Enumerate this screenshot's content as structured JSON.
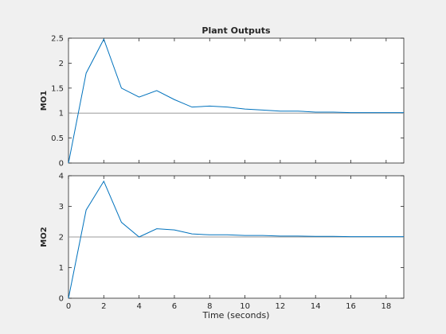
{
  "colors": {
    "figure_bg": "#f0f0f0",
    "axes_bg": "#ffffff",
    "axis": "#262626",
    "series": "#0072bd",
    "reference": "#9b9b9b"
  },
  "chart_data": [
    {
      "type": "line",
      "title": "Plant Outputs",
      "xlabel": "",
      "ylabel": "MO1",
      "xlim": [
        0,
        19
      ],
      "ylim": [
        0,
        2.5
      ],
      "xticks": [
        0,
        2,
        4,
        6,
        8,
        10,
        12,
        14,
        16,
        18
      ],
      "yticks": [
        0,
        0.5,
        1,
        1.5,
        2,
        2.5
      ],
      "ytick_labels": [
        "0",
        "0.5",
        "1",
        "1.5",
        "2",
        "2.5"
      ],
      "reference": 1,
      "grid": false,
      "x": [
        0,
        1,
        2,
        3,
        4,
        5,
        6,
        7,
        8,
        9,
        10,
        11,
        12,
        13,
        14,
        15,
        16,
        17,
        18,
        19
      ],
      "y": [
        0,
        1.8,
        2.48,
        1.5,
        1.32,
        1.45,
        1.27,
        1.12,
        1.14,
        1.12,
        1.08,
        1.06,
        1.04,
        1.04,
        1.02,
        1.02,
        1.01,
        1.01,
        1.01,
        1.01
      ]
    },
    {
      "type": "line",
      "title": "",
      "xlabel": "Time (seconds)",
      "ylabel": "MO2",
      "xlim": [
        0,
        19
      ],
      "ylim": [
        0,
        4
      ],
      "xticks": [
        0,
        2,
        4,
        6,
        8,
        10,
        12,
        14,
        16,
        18
      ],
      "yticks": [
        0,
        1,
        2,
        3,
        4
      ],
      "ytick_labels": [
        "0",
        "1",
        "2",
        "3",
        "4"
      ],
      "reference": 2,
      "grid": false,
      "x": [
        0,
        1,
        2,
        3,
        4,
        5,
        6,
        7,
        8,
        9,
        10,
        11,
        12,
        13,
        14,
        15,
        16,
        17,
        18,
        19
      ],
      "y": [
        0,
        2.88,
        3.82,
        2.48,
        2.0,
        2.27,
        2.23,
        2.1,
        2.07,
        2.07,
        2.05,
        2.05,
        2.03,
        2.03,
        2.02,
        2.02,
        2.01,
        2.01,
        2.01,
        2.01
      ]
    }
  ]
}
